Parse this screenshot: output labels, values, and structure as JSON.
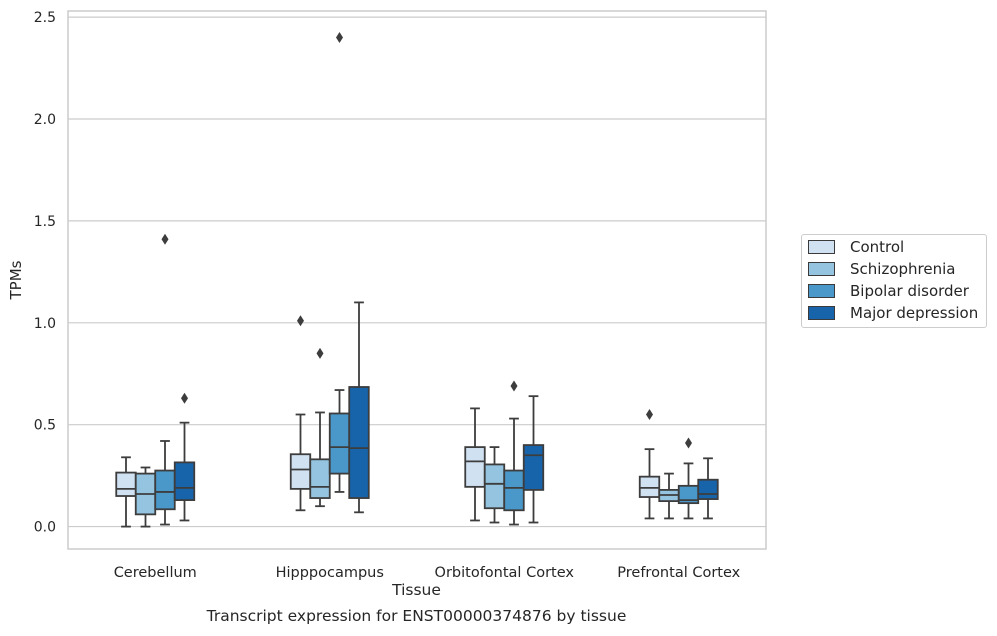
{
  "chart_data": {
    "type": "boxplot",
    "title": "Transcript expression for ENST00000374876 by tissue",
    "xlabel": "Tissue",
    "ylabel": "TPMs",
    "ylim": [
      -0.11,
      2.53
    ],
    "yticks": [
      0.0,
      0.5,
      1.0,
      1.5,
      2.0,
      2.5
    ],
    "ytick_labels": [
      "0.0",
      "0.5",
      "1.0",
      "1.5",
      "2.0",
      "2.5"
    ],
    "grid": "horizontal",
    "legend_position": "right",
    "categories": [
      "Cerebellum",
      "Hipppocampus",
      "Orbitofontal Cortex",
      "Prefrontal Cortex"
    ],
    "series": [
      {
        "name": "Control",
        "color": "#d0e1f2",
        "boxes": [
          {
            "whislo": 0.0,
            "q1": 0.15,
            "med": 0.185,
            "q3": 0.265,
            "whishi": 0.34,
            "fliers": []
          },
          {
            "whislo": 0.08,
            "q1": 0.185,
            "med": 0.28,
            "q3": 0.355,
            "whishi": 0.55,
            "fliers": [
              1.01
            ]
          },
          {
            "whislo": 0.03,
            "q1": 0.195,
            "med": 0.32,
            "q3": 0.39,
            "whishi": 0.58,
            "fliers": []
          },
          {
            "whislo": 0.04,
            "q1": 0.145,
            "med": 0.19,
            "q3": 0.245,
            "whishi": 0.38,
            "fliers": [
              0.55
            ]
          }
        ]
      },
      {
        "name": "Schizophrenia",
        "color": "#94c4df",
        "boxes": [
          {
            "whislo": 0.0,
            "q1": 0.06,
            "med": 0.16,
            "q3": 0.26,
            "whishi": 0.29,
            "fliers": []
          },
          {
            "whislo": 0.1,
            "q1": 0.14,
            "med": 0.195,
            "q3": 0.33,
            "whishi": 0.56,
            "fliers": [
              0.85
            ]
          },
          {
            "whislo": 0.02,
            "q1": 0.09,
            "med": 0.21,
            "q3": 0.305,
            "whishi": 0.39,
            "fliers": []
          },
          {
            "whislo": 0.04,
            "q1": 0.125,
            "med": 0.155,
            "q3": 0.18,
            "whishi": 0.26,
            "fliers": []
          }
        ]
      },
      {
        "name": "Bipolar disorder",
        "color": "#4a98c9",
        "boxes": [
          {
            "whislo": 0.01,
            "q1": 0.085,
            "med": 0.17,
            "q3": 0.275,
            "whishi": 0.42,
            "fliers": [
              1.41
            ]
          },
          {
            "whislo": 0.17,
            "q1": 0.26,
            "med": 0.39,
            "q3": 0.555,
            "whishi": 0.67,
            "fliers": [
              2.4
            ]
          },
          {
            "whislo": 0.01,
            "q1": 0.08,
            "med": 0.19,
            "q3": 0.275,
            "whishi": 0.53,
            "fliers": [
              0.69
            ]
          },
          {
            "whislo": 0.04,
            "q1": 0.115,
            "med": 0.13,
            "q3": 0.2,
            "whishi": 0.31,
            "fliers": [
              0.41
            ]
          }
        ]
      },
      {
        "name": "Major depression",
        "color": "#1764ab",
        "boxes": [
          {
            "whislo": 0.03,
            "q1": 0.13,
            "med": 0.19,
            "q3": 0.315,
            "whishi": 0.51,
            "fliers": [
              0.63
            ]
          },
          {
            "whislo": 0.07,
            "q1": 0.14,
            "med": 0.385,
            "q3": 0.685,
            "whishi": 1.1,
            "fliers": []
          },
          {
            "whislo": 0.02,
            "q1": 0.18,
            "med": 0.35,
            "q3": 0.4,
            "whishi": 0.64,
            "fliers": []
          },
          {
            "whislo": 0.04,
            "q1": 0.135,
            "med": 0.16,
            "q3": 0.23,
            "whishi": 0.335,
            "fliers": []
          }
        ]
      }
    ]
  }
}
